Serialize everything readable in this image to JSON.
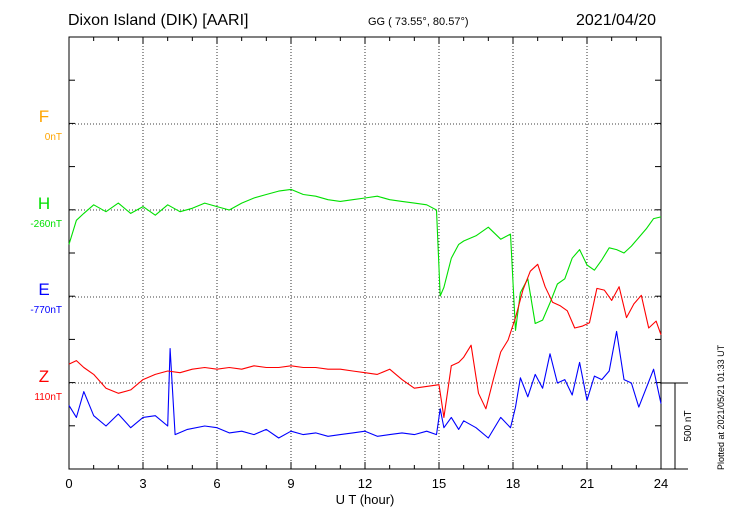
{
  "header": {
    "station": "Dixon Island (DIK)  [AARI]",
    "coords": "GG ( 73.55°,  80.57°)",
    "date": "2021/04/20"
  },
  "footer": {
    "plotted": "Plotted at 2021/05/21 01:33 UT"
  },
  "colors": {
    "F": "#ffa500",
    "H": "#00e000",
    "E": "#0000ff",
    "Z": "#ff0000"
  },
  "chart_data": {
    "type": "line",
    "xlabel": "U T (hour)",
    "xlim": [
      0,
      24
    ],
    "xticks": [
      "0",
      "3",
      "6",
      "9",
      "12",
      "15",
      "18",
      "21",
      "24"
    ],
    "scale_bar": "500 nT",
    "grid": true,
    "series": [
      {
        "name": "F",
        "baseline": "0nT",
        "x": [],
        "y": []
      },
      {
        "name": "H",
        "baseline": "-260nT",
        "x": [
          0,
          0.3,
          0.6,
          1,
          1.5,
          2,
          2.5,
          3,
          3.5,
          4,
          4.5,
          5,
          5.5,
          6,
          6.5,
          7,
          7.5,
          8,
          8.5,
          9,
          9.5,
          10,
          10.5,
          11,
          11.5,
          12,
          12.5,
          13,
          13.5,
          14,
          14.5,
          14.9,
          15.05,
          15.2,
          15.5,
          15.8,
          16,
          16.5,
          17,
          17.5,
          17.9,
          18.1,
          18.3,
          18.6,
          18.9,
          19.2,
          19.5,
          19.8,
          20.1,
          20.4,
          20.7,
          21,
          21.3,
          21.6,
          21.9,
          22.2,
          22.5,
          22.8,
          23.1,
          23.4,
          23.7,
          24
        ],
        "y": [
          -200,
          -60,
          -20,
          30,
          -10,
          40,
          -20,
          20,
          -30,
          30,
          -10,
          10,
          40,
          20,
          0,
          40,
          70,
          90,
          110,
          120,
          90,
          80,
          60,
          50,
          60,
          70,
          80,
          60,
          50,
          40,
          30,
          0,
          -500,
          -450,
          -280,
          -200,
          -180,
          -150,
          -100,
          -170,
          -140,
          -700,
          -480,
          -400,
          -660,
          -640,
          -540,
          -430,
          -400,
          -280,
          -230,
          -320,
          -350,
          -290,
          -220,
          -230,
          -250,
          -210,
          -160,
          -110,
          -50,
          -40
        ]
      },
      {
        "name": "E",
        "baseline": "-770nT",
        "x": [
          0,
          0.3,
          0.6,
          1,
          1.5,
          2,
          2.5,
          3,
          3.5,
          4,
          4.1,
          4.3,
          4.8,
          5.5,
          6,
          6.5,
          7,
          7.5,
          8,
          8.5,
          9,
          9.5,
          10,
          10.5,
          11,
          11.5,
          12,
          12.5,
          13,
          13.5,
          14,
          14.5,
          14.9,
          15.05,
          15.2,
          15.5,
          15.8,
          16,
          16.5,
          17,
          17.5,
          17.9,
          18.1,
          18.3,
          18.6,
          18.9,
          19.2,
          19.5,
          19.8,
          20.1,
          20.4,
          20.7,
          21,
          21.3,
          21.6,
          21.9,
          22.2,
          22.5,
          22.8,
          23.1,
          23.4,
          23.7,
          24
        ],
        "y": [
          -630,
          -700,
          -550,
          -690,
          -750,
          -680,
          -760,
          -700,
          -690,
          -750,
          -300,
          -800,
          -770,
          -750,
          -760,
          -790,
          -780,
          -800,
          -770,
          -820,
          -780,
          -800,
          -790,
          -810,
          -800,
          -790,
          -780,
          -810,
          -800,
          -790,
          -800,
          -780,
          -800,
          -650,
          -760,
          -700,
          -770,
          -720,
          -760,
          -820,
          -700,
          -760,
          -640,
          -470,
          -580,
          -450,
          -530,
          -330,
          -500,
          -480,
          -570,
          -380,
          -600,
          -460,
          -480,
          -430,
          -200,
          -480,
          -500,
          -640,
          -530,
          -420,
          -620
        ]
      },
      {
        "name": "Z",
        "baseline": "110nT",
        "x": [
          0,
          0.3,
          0.6,
          1,
          1.5,
          2,
          2.5,
          3,
          3.5,
          4,
          4.5,
          5,
          5.5,
          6,
          6.5,
          7,
          7.5,
          8,
          8.5,
          9,
          9.5,
          10,
          10.5,
          11,
          11.5,
          12,
          12.5,
          13,
          13.5,
          14,
          14.5,
          15,
          15.2,
          15.5,
          15.8,
          16,
          16.3,
          16.6,
          16.9,
          17.2,
          17.5,
          17.8,
          18.1,
          18.4,
          18.7,
          19,
          19.3,
          19.6,
          19.9,
          20.2,
          20.5,
          20.8,
          21.1,
          21.4,
          21.7,
          22,
          22.3,
          22.6,
          22.9,
          23.2,
          23.5,
          23.8,
          24
        ],
        "y": [
          110,
          130,
          90,
          50,
          -30,
          -60,
          -40,
          20,
          50,
          70,
          60,
          80,
          90,
          80,
          90,
          80,
          100,
          90,
          90,
          100,
          90,
          90,
          80,
          80,
          70,
          60,
          50,
          80,
          20,
          -30,
          -20,
          -10,
          -200,
          100,
          120,
          150,
          220,
          -60,
          -150,
          20,
          180,
          250,
          380,
          540,
          650,
          690,
          560,
          470,
          450,
          420,
          320,
          330,
          350,
          550,
          540,
          480,
          560,
          380,
          460,
          510,
          320,
          360,
          280
        ]
      }
    ]
  }
}
